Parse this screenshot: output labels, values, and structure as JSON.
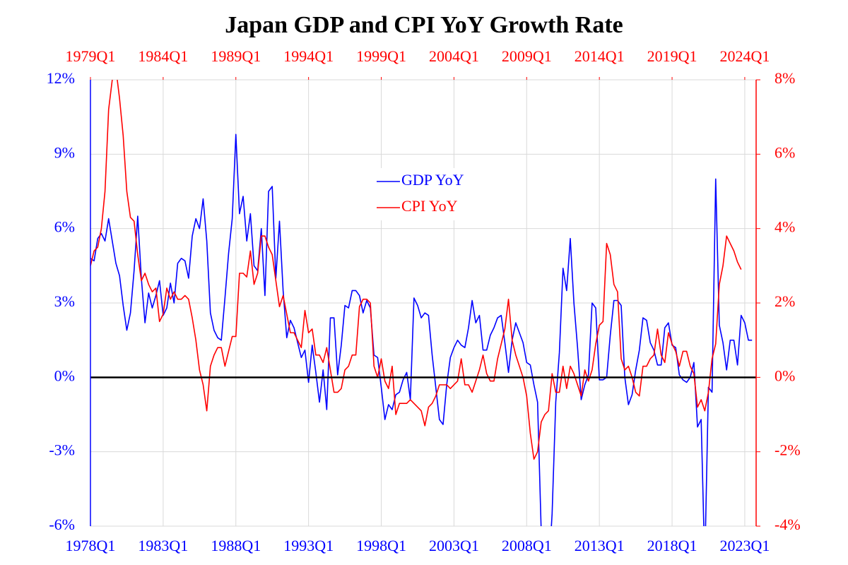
{
  "chart_data": {
    "type": "line",
    "title": "Japan GDP and CPI YoY Growth Rate",
    "series": [
      {
        "name": "GDP YoY",
        "color": "#0000ff",
        "axis": "y",
        "x_axis": "bottom",
        "x": [
          "1978Q1",
          "1978Q2",
          "1978Q3",
          "1978Q4",
          "1979Q1",
          "1979Q2",
          "1979Q3",
          "1979Q4",
          "1980Q1",
          "1980Q2",
          "1980Q3",
          "1980Q4",
          "1981Q1",
          "1981Q2",
          "1981Q3",
          "1981Q4",
          "1982Q1",
          "1982Q2",
          "1982Q3",
          "1982Q4",
          "1983Q1",
          "1983Q2",
          "1983Q3",
          "1983Q4",
          "1984Q1",
          "1984Q2",
          "1984Q3",
          "1984Q4",
          "1985Q1",
          "1985Q2",
          "1985Q3",
          "1985Q4",
          "1986Q1",
          "1986Q2",
          "1986Q3",
          "1986Q4",
          "1987Q1",
          "1987Q2",
          "1987Q3",
          "1987Q4",
          "1988Q1",
          "1988Q2",
          "1988Q3",
          "1988Q4",
          "1989Q1",
          "1989Q2",
          "1989Q3",
          "1989Q4",
          "1990Q1",
          "1990Q2",
          "1990Q3",
          "1990Q4",
          "1991Q1",
          "1991Q2",
          "1991Q3",
          "1991Q4",
          "1992Q1",
          "1992Q2",
          "1992Q3",
          "1992Q4",
          "1993Q1",
          "1993Q2",
          "1993Q3",
          "1993Q4",
          "1994Q1",
          "1994Q2",
          "1994Q3",
          "1994Q4",
          "1995Q1",
          "1995Q2",
          "1995Q3",
          "1995Q4",
          "1996Q1",
          "1996Q2",
          "1996Q3",
          "1996Q4",
          "1997Q1",
          "1997Q2",
          "1997Q3",
          "1997Q4",
          "1998Q1",
          "1998Q2",
          "1998Q3",
          "1998Q4",
          "1999Q1",
          "1999Q2",
          "1999Q3",
          "1999Q4",
          "2000Q1",
          "2000Q2",
          "2000Q3",
          "2000Q4",
          "2001Q1",
          "2001Q2",
          "2001Q3",
          "2001Q4",
          "2002Q1",
          "2002Q2",
          "2002Q3",
          "2002Q4",
          "2003Q1",
          "2003Q2",
          "2003Q3",
          "2003Q4",
          "2004Q1",
          "2004Q2",
          "2004Q3",
          "2004Q4",
          "2005Q1",
          "2005Q2",
          "2005Q3",
          "2005Q4",
          "2006Q1",
          "2006Q2",
          "2006Q3",
          "2006Q4",
          "2007Q1",
          "2007Q2",
          "2007Q3",
          "2007Q4",
          "2008Q1",
          "2008Q2",
          "2008Q3",
          "2008Q4",
          "2009Q1",
          "2009Q2",
          "2009Q3",
          "2009Q4",
          "2010Q1",
          "2010Q2",
          "2010Q3",
          "2010Q4",
          "2011Q1",
          "2011Q2",
          "2011Q3",
          "2011Q4",
          "2012Q1",
          "2012Q2",
          "2012Q3",
          "2012Q4",
          "2013Q1",
          "2013Q2",
          "2013Q3",
          "2013Q4",
          "2014Q1",
          "2014Q2",
          "2014Q3",
          "2014Q4",
          "2015Q1",
          "2015Q2",
          "2015Q3",
          "2015Q4",
          "2016Q1",
          "2016Q2",
          "2016Q3",
          "2016Q4",
          "2017Q1",
          "2017Q2",
          "2017Q3",
          "2017Q4",
          "2018Q1",
          "2018Q2",
          "2018Q3",
          "2018Q4",
          "2019Q1",
          "2019Q2",
          "2019Q3",
          "2019Q4",
          "2020Q1",
          "2020Q2",
          "2020Q3",
          "2020Q4",
          "2021Q1",
          "2021Q2",
          "2021Q3",
          "2021Q4",
          "2022Q1",
          "2022Q2",
          "2022Q3",
          "2022Q4",
          "2023Q1",
          "2023Q2",
          "2023Q3"
        ],
        "values": [
          4.8,
          4.7,
          5.6,
          5.8,
          5.5,
          6.4,
          5.5,
          4.6,
          4.1,
          2.9,
          1.9,
          2.6,
          4.3,
          6.5,
          4.0,
          2.2,
          3.4,
          2.8,
          3.3,
          3.9,
          2.5,
          2.8,
          3.8,
          3.0,
          4.6,
          4.8,
          4.7,
          4.0,
          5.7,
          6.4,
          6.0,
          7.2,
          5.5,
          2.6,
          1.9,
          1.6,
          1.5,
          3.2,
          5.0,
          6.4,
          9.8,
          6.6,
          7.3,
          5.5,
          6.6,
          4.5,
          4.3,
          6.0,
          3.3,
          7.5,
          7.7,
          4.0,
          6.3,
          3.5,
          1.6,
          2.3,
          2.0,
          1.4,
          0.8,
          1.1,
          -0.2,
          1.3,
          0.2,
          -1.0,
          0.3,
          -1.3,
          2.4,
          2.4,
          0.1,
          1.3,
          2.9,
          2.8,
          3.5,
          3.5,
          3.3,
          2.6,
          3.1,
          2.8,
          0.9,
          0.8,
          -0.4,
          -1.7,
          -1.1,
          -1.3,
          -0.7,
          -0.6,
          -0.1,
          0.2,
          -0.9,
          3.2,
          2.9,
          2.4,
          2.6,
          2.5,
          0.9,
          -0.4,
          -1.7,
          -1.9,
          -0.3,
          0.8,
          1.2,
          1.5,
          1.3,
          1.2,
          2.0,
          3.1,
          2.2,
          2.5,
          1.1,
          1.1,
          1.7,
          2.0,
          2.4,
          2.5,
          1.4,
          0.2,
          1.5,
          2.2,
          1.8,
          1.4,
          0.6,
          0.5,
          -0.3,
          -1.0,
          -6.2,
          -8.5,
          -8.0,
          -5.5,
          -1.0,
          1.0,
          4.4,
          3.5,
          5.6,
          3.0,
          1.2,
          -0.9,
          -0.3,
          0.1,
          3.0,
          2.8,
          -0.1,
          -0.1,
          0.0,
          1.7,
          3.1,
          3.1,
          2.9,
          0.0,
          -1.1,
          -0.7,
          0.3,
          1.1,
          2.4,
          2.3,
          1.4,
          1.1,
          0.5,
          0.5,
          2.0,
          2.2,
          1.3,
          1.2,
          0.1,
          -0.1,
          -0.2,
          0.0,
          0.6,
          -2.0,
          -1.7,
          -7.6,
          -0.4,
          -0.6,
          8.0,
          2.1,
          1.4,
          0.3,
          1.5,
          1.5,
          0.5,
          2.5,
          2.2,
          1.5,
          1.5
        ]
      },
      {
        "name": "CPI YoY",
        "color": "#ff0000",
        "axis": "y2",
        "x_axis": "top",
        "x": [
          "1979Q1",
          "1979Q2",
          "1979Q3",
          "1979Q4",
          "1980Q1",
          "1980Q2",
          "1980Q3",
          "1980Q4",
          "1981Q1",
          "1981Q2",
          "1981Q3",
          "1981Q4",
          "1982Q1",
          "1982Q2",
          "1982Q3",
          "1982Q4",
          "1983Q1",
          "1983Q2",
          "1983Q3",
          "1983Q4",
          "1984Q1",
          "1984Q2",
          "1984Q3",
          "1984Q4",
          "1985Q1",
          "1985Q2",
          "1985Q3",
          "1985Q4",
          "1986Q1",
          "1986Q2",
          "1986Q3",
          "1986Q4",
          "1987Q1",
          "1987Q2",
          "1987Q3",
          "1987Q4",
          "1988Q1",
          "1988Q2",
          "1988Q3",
          "1988Q4",
          "1989Q1",
          "1989Q2",
          "1989Q3",
          "1989Q4",
          "1990Q1",
          "1990Q2",
          "1990Q3",
          "1990Q4",
          "1991Q1",
          "1991Q2",
          "1991Q3",
          "1991Q4",
          "1992Q1",
          "1992Q2",
          "1992Q3",
          "1992Q4",
          "1993Q1",
          "1993Q2",
          "1993Q3",
          "1993Q4",
          "1994Q1",
          "1994Q2",
          "1994Q3",
          "1994Q4",
          "1995Q1",
          "1995Q2",
          "1995Q3",
          "1995Q4",
          "1996Q1",
          "1996Q2",
          "1996Q3",
          "1996Q4",
          "1997Q1",
          "1997Q2",
          "1997Q3",
          "1997Q4",
          "1998Q1",
          "1998Q2",
          "1998Q3",
          "1998Q4",
          "1999Q1",
          "1999Q2",
          "1999Q3",
          "1999Q4",
          "2000Q1",
          "2000Q2",
          "2000Q3",
          "2000Q4",
          "2001Q1",
          "2001Q2",
          "2001Q3",
          "2001Q4",
          "2002Q1",
          "2002Q2",
          "2002Q3",
          "2002Q4",
          "2003Q1",
          "2003Q2",
          "2003Q3",
          "2003Q4",
          "2004Q1",
          "2004Q2",
          "2004Q3",
          "2004Q4",
          "2005Q1",
          "2005Q2",
          "2005Q3",
          "2005Q4",
          "2006Q1",
          "2006Q2",
          "2006Q3",
          "2006Q4",
          "2007Q1",
          "2007Q2",
          "2007Q3",
          "2007Q4",
          "2008Q1",
          "2008Q2",
          "2008Q3",
          "2008Q4",
          "2009Q1",
          "2009Q2",
          "2009Q3",
          "2009Q4",
          "2010Q1",
          "2010Q2",
          "2010Q3",
          "2010Q4",
          "2011Q1",
          "2011Q2",
          "2011Q3",
          "2011Q4",
          "2012Q1",
          "2012Q2",
          "2012Q3",
          "2012Q4",
          "2013Q1",
          "2013Q2",
          "2013Q3",
          "2013Q4",
          "2014Q1",
          "2014Q2",
          "2014Q3",
          "2014Q4",
          "2015Q1",
          "2015Q2",
          "2015Q3",
          "2015Q4",
          "2016Q1",
          "2016Q2",
          "2016Q3",
          "2016Q4",
          "2017Q1",
          "2017Q2",
          "2017Q3",
          "2017Q4",
          "2018Q1",
          "2018Q2",
          "2018Q3",
          "2018Q4",
          "2019Q1",
          "2019Q2",
          "2019Q3",
          "2019Q4",
          "2020Q1",
          "2020Q2",
          "2020Q3",
          "2020Q4",
          "2021Q1",
          "2021Q2",
          "2021Q3",
          "2021Q4",
          "2022Q1",
          "2022Q2",
          "2022Q3",
          "2022Q4",
          "2023Q1",
          "2023Q2",
          "2023Q3",
          "2023Q4"
        ],
        "values": [
          3.0,
          3.4,
          3.5,
          4.0,
          5.0,
          7.2,
          8.0,
          8.3,
          7.5,
          6.5,
          5.0,
          4.3,
          4.2,
          3.3,
          2.6,
          2.8,
          2.5,
          2.3,
          2.4,
          1.5,
          1.7,
          2.4,
          2.1,
          2.3,
          2.1,
          2.1,
          2.2,
          2.1,
          1.6,
          1.0,
          0.2,
          -0.2,
          -0.9,
          0.3,
          0.6,
          0.8,
          0.8,
          0.3,
          0.7,
          1.1,
          1.1,
          2.8,
          2.8,
          2.7,
          3.4,
          2.5,
          2.8,
          3.8,
          3.8,
          3.5,
          3.3,
          2.6,
          1.9,
          2.2,
          1.7,
          1.2,
          1.2,
          1.0,
          0.8,
          1.8,
          1.2,
          1.3,
          0.6,
          0.6,
          0.4,
          0.8,
          0.2,
          -0.4,
          -0.4,
          -0.3,
          0.2,
          0.3,
          0.6,
          0.6,
          1.9,
          2.1,
          2.1,
          2.0,
          0.3,
          0.0,
          0.5,
          -0.1,
          -0.3,
          0.3,
          -1.0,
          -0.7,
          -0.7,
          -0.7,
          -0.6,
          -0.7,
          -0.8,
          -0.9,
          -1.3,
          -0.8,
          -0.7,
          -0.5,
          -0.2,
          -0.2,
          -0.2,
          -0.3,
          -0.2,
          -0.1,
          0.5,
          -0.2,
          -0.2,
          -0.4,
          -0.1,
          0.2,
          0.6,
          0.1,
          -0.1,
          -0.1,
          0.5,
          0.9,
          1.3,
          2.1,
          1.0,
          0.6,
          0.3,
          0.0,
          -0.5,
          -1.5,
          -2.2,
          -2.0,
          -1.2,
          -1.0,
          -0.9,
          0.1,
          -0.4,
          -0.4,
          0.3,
          -0.3,
          0.3,
          0.1,
          -0.2,
          -0.5,
          0.2,
          -0.1,
          0.2,
          0.9,
          1.4,
          1.5,
          3.6,
          3.3,
          2.5,
          2.3,
          0.5,
          0.2,
          0.3,
          0.0,
          -0.4,
          -0.5,
          0.3,
          0.3,
          0.5,
          0.6,
          1.3,
          0.6,
          0.4,
          1.2,
          0.9,
          0.7,
          0.3,
          0.7,
          0.7,
          0.3,
          0.1,
          -0.8,
          -0.6,
          -0.9,
          -0.4,
          0.5,
          0.9,
          2.5,
          3.0,
          3.8,
          3.6,
          3.4,
          3.1,
          2.9
        ]
      }
    ],
    "xticks": [
      "1978Q1",
      "1983Q1",
      "1988Q1",
      "1993Q1",
      "1998Q1",
      "2003Q1",
      "2008Q1",
      "2013Q1",
      "2018Q1",
      "2023Q1"
    ],
    "x2ticks": [
      "1979Q1",
      "1984Q1",
      "1989Q1",
      "1994Q1",
      "1999Q1",
      "2004Q1",
      "2009Q1",
      "2014Q1",
      "2019Q1",
      "2024Q1"
    ],
    "ylim": [
      -6,
      12
    ],
    "yticks": [
      {
        "value": -6,
        "label": "-6%"
      },
      {
        "value": -3,
        "label": "-3%"
      },
      {
        "value": 0,
        "label": "0%"
      },
      {
        "value": 3,
        "label": "3%"
      },
      {
        "value": 6,
        "label": "6%"
      },
      {
        "value": 9,
        "label": "9%"
      },
      {
        "value": 12,
        "label": "12%"
      }
    ],
    "y2lim": [
      -4,
      8
    ],
    "y2ticks": [
      {
        "value": -4,
        "label": "-4%"
      },
      {
        "value": -2,
        "label": "-2%"
      },
      {
        "value": 0,
        "label": "0%"
      },
      {
        "value": 2,
        "label": "2%"
      },
      {
        "value": 4,
        "label": "4%"
      },
      {
        "value": 6,
        "label": "6%"
      },
      {
        "value": 8,
        "label": "8%"
      }
    ],
    "grid": true
  }
}
